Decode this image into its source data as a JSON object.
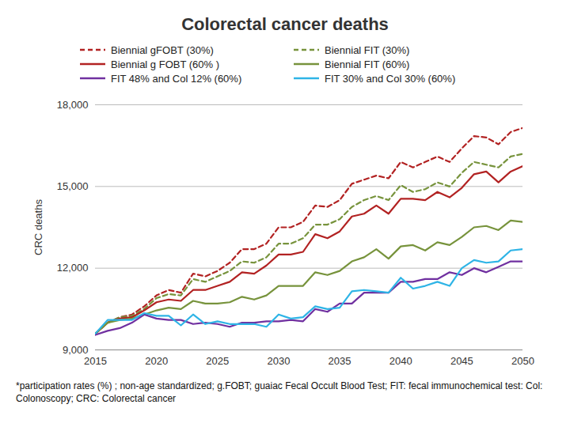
{
  "chart_data": {
    "type": "line",
    "title": "Colorectal cancer deaths",
    "ylabel": "CRC deaths",
    "caption": "*participation rates (%) ; non-age standardized; g.FOBT; guaiac Fecal Occult Blood Test; FIT: fecal immunochemical test: Col: Colonoscopy; CRC: Colorectal cancer",
    "x": [
      2015,
      2016,
      2017,
      2018,
      2019,
      2020,
      2021,
      2022,
      2023,
      2024,
      2025,
      2026,
      2027,
      2028,
      2029,
      2030,
      2031,
      2032,
      2033,
      2034,
      2035,
      2036,
      2037,
      2038,
      2039,
      2040,
      2041,
      2042,
      2043,
      2044,
      2045,
      2046,
      2047,
      2048,
      2049,
      2050
    ],
    "xlim": [
      2015,
      2050
    ],
    "xticks": [
      2015,
      2020,
      2025,
      2030,
      2035,
      2040,
      2045,
      2050
    ],
    "ylim": [
      9000,
      18000
    ],
    "yticks": [
      {
        "value": 9000,
        "label": "9,000"
      },
      {
        "value": 12000,
        "label": "12,000"
      },
      {
        "value": 15000,
        "label": "15,000"
      },
      {
        "value": 18000,
        "label": "18,000"
      }
    ],
    "grid": true,
    "legend": "top",
    "series": [
      {
        "name": "Biennial gFOBT (30%)",
        "color": "#b22222",
        "line_style": "dashed",
        "values": [
          9600,
          10000,
          10200,
          10300,
          10600,
          11000,
          11200,
          11100,
          11800,
          11700,
          11900,
          12200,
          12700,
          12700,
          12900,
          13500,
          13500,
          13700,
          14300,
          14250,
          14500,
          15100,
          15250,
          15400,
          15300,
          15900,
          15700,
          15900,
          16100,
          15900,
          16400,
          16850,
          16800,
          16550,
          17000,
          17150
        ]
      },
      {
        "name": "Biennial FIT (30%)",
        "color": "#77933c",
        "line_style": "dashed",
        "values": [
          9600,
          10000,
          10200,
          10250,
          10500,
          10900,
          11050,
          11000,
          11600,
          11500,
          11700,
          11900,
          12250,
          12200,
          12400,
          12900,
          12900,
          13100,
          13600,
          13600,
          13800,
          14250,
          14500,
          14650,
          14500,
          15050,
          14800,
          14900,
          15150,
          15000,
          15500,
          15900,
          15800,
          15700,
          16100,
          16200
        ]
      },
      {
        "name": "Biennial g FOBT (60% )",
        "color": "#b22222",
        "line_style": "solid",
        "values": [
          9600,
          10000,
          10150,
          10200,
          10450,
          10750,
          10850,
          10800,
          11200,
          11200,
          11350,
          11500,
          11850,
          11800,
          12100,
          12500,
          12500,
          12600,
          13250,
          13100,
          13350,
          13900,
          14000,
          14300,
          14000,
          14550,
          14550,
          14500,
          14800,
          14600,
          14950,
          15450,
          15550,
          15150,
          15550,
          15750
        ]
      },
      {
        "name": "Biennial FIT (60%)",
        "color": "#77933c",
        "line_style": "solid",
        "values": [
          9600,
          10000,
          10100,
          10150,
          10300,
          10450,
          10550,
          10500,
          10800,
          10700,
          10700,
          10750,
          10950,
          10850,
          11000,
          11350,
          11350,
          11350,
          11850,
          11750,
          11900,
          12250,
          12400,
          12700,
          12350,
          12800,
          12850,
          12650,
          12950,
          12850,
          13150,
          13500,
          13550,
          13400,
          13750,
          13700
        ]
      },
      {
        "name": "FIT 48% and Col 12% (60%)",
        "color": "#7030a0",
        "line_style": "solid",
        "values": [
          9550,
          9700,
          9800,
          10000,
          10300,
          10150,
          10100,
          10100,
          9950,
          10000,
          9950,
          9850,
          10000,
          10000,
          10050,
          10050,
          10100,
          10050,
          10500,
          10400,
          10700,
          10700,
          11100,
          11100,
          11100,
          11500,
          11500,
          11600,
          11600,
          11850,
          11750,
          12000,
          11850,
          12050,
          12250,
          12250
        ]
      },
      {
        "name": "FIT 30% and Col 30% (60%)",
        "color": "#2eb4e6",
        "line_style": "solid",
        "values": [
          9600,
          10100,
          10100,
          10100,
          10350,
          10250,
          10250,
          9900,
          10300,
          9950,
          10050,
          9950,
          9950,
          9950,
          9850,
          10300,
          10150,
          10200,
          10600,
          10500,
          10550,
          11150,
          11200,
          11150,
          11100,
          11650,
          11250,
          11350,
          11500,
          11350,
          12000,
          12300,
          12200,
          12250,
          12650,
          12700
        ]
      }
    ]
  }
}
